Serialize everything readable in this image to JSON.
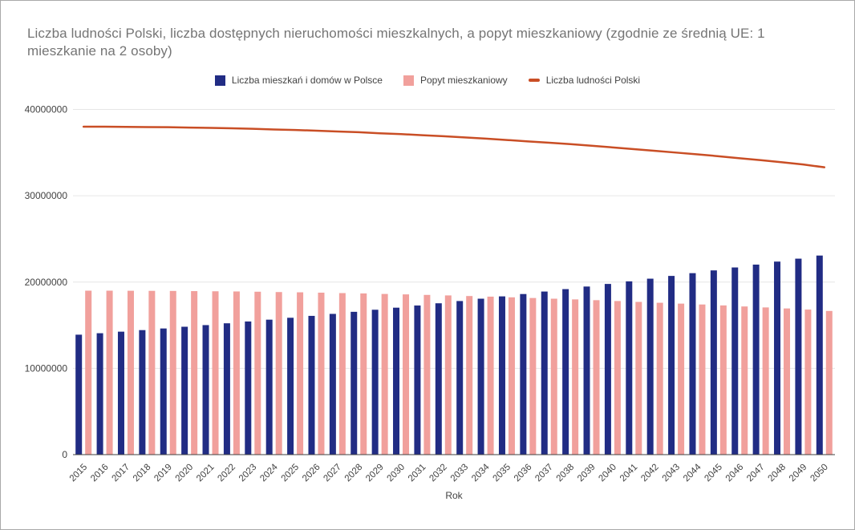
{
  "header": {
    "title": "Liczba ludności Polski, liczba dostępnych nieruchomości mieszkalnych, a popyt mieszkaniowy (zgodnie ze średnią UE: 1 mieszkanie na 2 osoby)"
  },
  "legend": {
    "items": [
      {
        "label": "Liczba mieszkań i domów w Polsce",
        "swatch": "square"
      },
      {
        "label": "Popyt mieszkaniowy",
        "swatch": "square"
      },
      {
        "label": "Liczba ludności Polski",
        "swatch": "dash"
      }
    ]
  },
  "colors": {
    "bars_housing": "#212c84",
    "bars_demand": "#f1a09c",
    "line_population": "#c94e25",
    "title_text": "#757575",
    "axis_text": "#424242",
    "gridline": "#e6e6e6",
    "axis_line": "#424242",
    "background": "#ffffff"
  },
  "chart_data": {
    "type": "bar",
    "subtype": "grouped-bars-with-line",
    "title": "Liczba ludności Polski, liczba dostępnych nieruchomości mieszkalnych, a popyt mieszkaniowy (zgodnie ze średnią UE: 1 mieszkanie na 2 osoby)",
    "xlabel": "Rok",
    "ylabel": "",
    "ylim": [
      0,
      40000000
    ],
    "yticks": [
      0,
      10000000,
      20000000,
      30000000,
      40000000
    ],
    "grid": true,
    "legend_position": "top",
    "categories": [
      "2015",
      "2016",
      "2017",
      "2018",
      "2019",
      "2020",
      "2021",
      "2022",
      "2023",
      "2024",
      "2025",
      "2026",
      "2027",
      "2028",
      "2029",
      "2030",
      "2031",
      "2032",
      "2033",
      "2034",
      "2035",
      "2036",
      "2037",
      "2038",
      "2039",
      "2040",
      "2041",
      "2042",
      "2043",
      "2044",
      "2045",
      "2046",
      "2047",
      "2048",
      "2049",
      "2050"
    ],
    "series": [
      {
        "name": "Liczba mieszkań i domów w Polsce",
        "type": "bar",
        "color": "#212c84",
        "values": [
          13900000,
          14070000,
          14250000,
          14430000,
          14620000,
          14820000,
          15010000,
          15220000,
          15430000,
          15640000,
          15860000,
          16080000,
          16310000,
          16550000,
          16790000,
          17030000,
          17280000,
          17540000,
          17800000,
          18070000,
          18340000,
          18610000,
          18900000,
          19180000,
          19480000,
          19780000,
          20080000,
          20390000,
          20710000,
          21030000,
          21350000,
          21690000,
          22020000,
          22370000,
          22710000,
          23070000
        ]
      },
      {
        "name": "Popyt mieszkaniowy",
        "type": "bar",
        "color": "#f1a09c",
        "values": [
          19000000,
          19000000,
          18990000,
          18980000,
          18970000,
          18950000,
          18930000,
          18910000,
          18880000,
          18840000,
          18810000,
          18770000,
          18720000,
          18680000,
          18620000,
          18570000,
          18510000,
          18450000,
          18380000,
          18310000,
          18230000,
          18150000,
          18070000,
          17990000,
          17900000,
          17800000,
          17700000,
          17600000,
          17500000,
          17400000,
          17290000,
          17170000,
          17060000,
          16940000,
          16810000,
          16650000
        ]
      },
      {
        "name": "Liczba ludności Polski",
        "type": "line",
        "color": "#c94e25",
        "values": [
          38000000,
          38000000,
          37980000,
          37960000,
          37940000,
          37900000,
          37860000,
          37820000,
          37760000,
          37680000,
          37620000,
          37540000,
          37440000,
          37360000,
          37240000,
          37140000,
          37020000,
          36900000,
          36760000,
          36620000,
          36460000,
          36300000,
          36140000,
          35980000,
          35800000,
          35600000,
          35400000,
          35200000,
          35000000,
          34800000,
          34580000,
          34340000,
          34120000,
          33880000,
          33620000,
          33300000
        ]
      }
    ]
  }
}
